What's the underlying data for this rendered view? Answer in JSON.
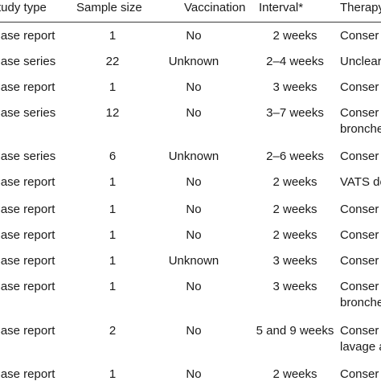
{
  "table": {
    "headers": {
      "study_type": "Study type",
      "sample_size": "Sample size",
      "vaccination": "Vaccination",
      "interval": "Interval*",
      "therapy": "Therapy"
    },
    "rows": [
      {
        "study_type": "Case report",
        "sample_size": "1",
        "vaccination": "No",
        "interval": "2 weeks",
        "therapy": "Conser",
        "therapy2": ""
      },
      {
        "study_type": "Case series",
        "sample_size": "22",
        "vaccination": "Unknown",
        "interval": "2–4 weeks",
        "therapy": "Unclear",
        "therapy2": ""
      },
      {
        "study_type": "Case report",
        "sample_size": "1",
        "vaccination": "No",
        "interval": "3 weeks",
        "therapy": "Conser",
        "therapy2": ""
      },
      {
        "study_type": "Case series",
        "sample_size": "12",
        "vaccination": "No",
        "interval": "3–7 weeks",
        "therapy": "Conser",
        "therapy2": "bronche"
      },
      {
        "study_type": "Case series",
        "sample_size": "6",
        "vaccination": "Unknown",
        "interval": "2–6 weeks",
        "therapy": "Conser",
        "therapy2": ""
      },
      {
        "study_type": "Case report",
        "sample_size": "1",
        "vaccination": "No",
        "interval": "2 weeks",
        "therapy": "VATS de",
        "therapy2": ""
      },
      {
        "study_type": "Case report",
        "sample_size": "1",
        "vaccination": "No",
        "interval": "2 weeks",
        "therapy": "Conser",
        "therapy2": ""
      },
      {
        "study_type": "Case report",
        "sample_size": "1",
        "vaccination": "No",
        "interval": "2 weeks",
        "therapy": "Conser",
        "therapy2": ""
      },
      {
        "study_type": "Case report",
        "sample_size": "1",
        "vaccination": "Unknown",
        "interval": "3 weeks",
        "therapy": "Conser",
        "therapy2": ""
      },
      {
        "study_type": "Case report",
        "sample_size": "1",
        "vaccination": "No",
        "interval": "3 weeks",
        "therapy": "Conser",
        "therapy2": "bronche"
      },
      {
        "study_type": "Case report",
        "sample_size": "2",
        "vaccination": "No",
        "interval": "5 and 9 weeks",
        "therapy": "Conser",
        "therapy2": "lavage a"
      },
      {
        "study_type": "Case report",
        "sample_size": "1",
        "vaccination": "No",
        "interval": "2 weeks",
        "therapy": "Conser",
        "therapy2": ""
      }
    ]
  }
}
